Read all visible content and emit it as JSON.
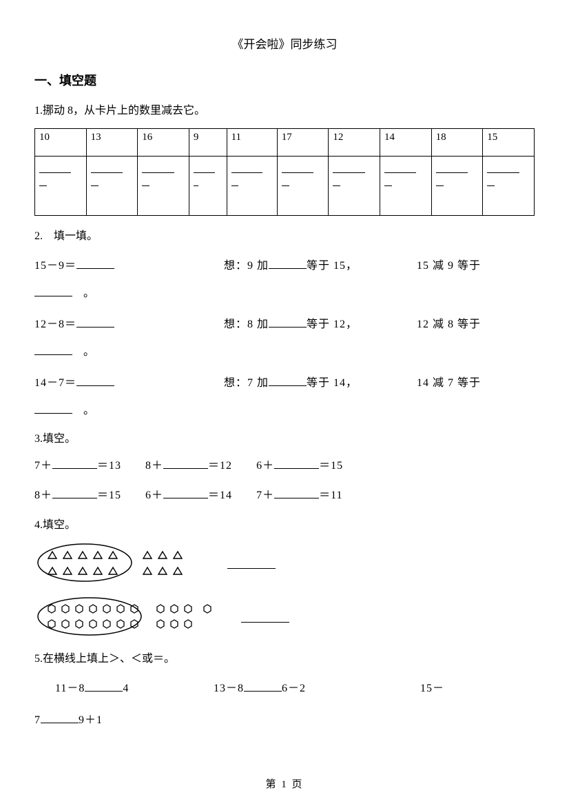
{
  "title": "《开会啦》同步练习",
  "section1_header": "一、填空题",
  "q1": {
    "prompt": "1.挪动 8，从卡片上的数里减去它。",
    "values": [
      "10",
      "13",
      "16",
      "9",
      "11",
      "17",
      "12",
      "14",
      "18",
      "15"
    ]
  },
  "q2": {
    "prompt": "2.　填一填。",
    "rows": [
      {
        "left": "15－9＝",
        "mid_pre": "想：9 加",
        "mid_post": "等于 15，",
        "right": "15 减 9 等于"
      },
      {
        "left": "12－8＝",
        "mid_pre": "想：8 加",
        "mid_post": "等于 12，",
        "right": "12 减 8 等于"
      },
      {
        "left": "14－7＝",
        "mid_pre": "想：7 加",
        "mid_post": "等于 14，",
        "right": "14 减 7 等于"
      }
    ]
  },
  "q3": {
    "prompt": "3.填空。",
    "row1": [
      "7＋",
      "＝13",
      "8＋",
      "＝12",
      "6＋",
      "＝15"
    ],
    "row2": [
      "8＋",
      "＝15",
      "6＋",
      "＝14",
      "7＋",
      "＝11"
    ]
  },
  "q4": {
    "prompt": "4.填空。"
  },
  "q5": {
    "prompt": "5.在横线上填上＞、＜或＝。",
    "items": {
      "a_left": "11－8",
      "a_right": "4",
      "b_left": "13－8",
      "b_right": "6－2",
      "c_left": "15－",
      "d_left": "7",
      "d_right": "9＋1"
    }
  },
  "page_label": "第 1 页"
}
